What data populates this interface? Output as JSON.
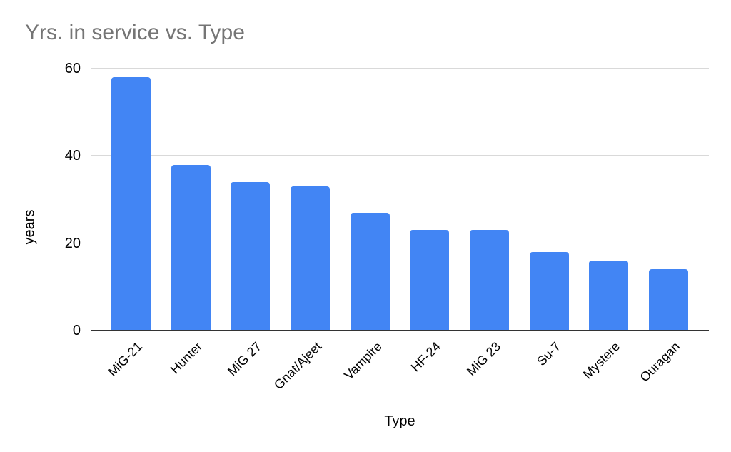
{
  "chart_data": {
    "type": "bar",
    "title": "Yrs. in service vs. Type",
    "categories": [
      "MiG-21",
      "Hunter",
      "MiG 27",
      "Gnat/Ajeet",
      "Vampire",
      "HF-24",
      "MiG 23",
      "Su-7",
      "Mystere",
      "Ouragan"
    ],
    "values": [
      58,
      38,
      34,
      33,
      27,
      23,
      23,
      18,
      16,
      14
    ],
    "xlabel": "Type",
    "ylabel": "years",
    "ylim": [
      0,
      60
    ],
    "yticks": [
      0,
      20,
      40,
      60
    ],
    "grid": true,
    "legend": "none",
    "colors": {
      "bar": "#4285f4",
      "gridline": "#d9d9d9",
      "axis_line": "#333333",
      "title": "#757575",
      "labels": "#000000",
      "background": "#ffffff"
    }
  }
}
